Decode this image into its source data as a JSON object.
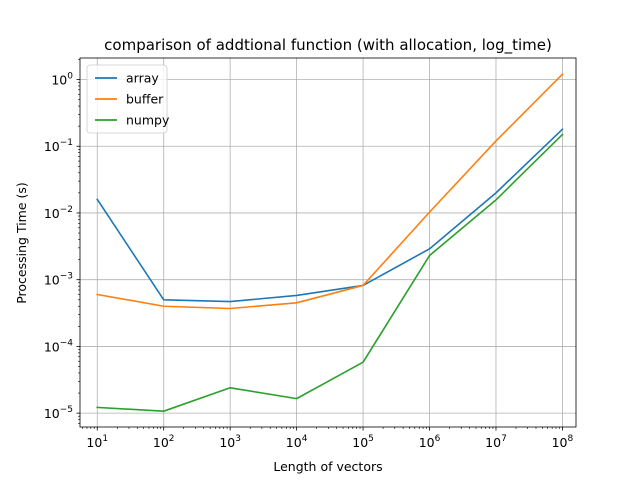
{
  "chart_data": {
    "type": "line",
    "title": "comparison of addtional function (with allocation, log_time)",
    "xlabel": "Length of vectors",
    "ylabel": "Processing Time (s)",
    "xscale": "log",
    "yscale": "log",
    "grid": true,
    "legend_position": "upper-left",
    "x": [
      10,
      100,
      1000,
      10000,
      100000,
      1000000,
      10000000,
      100000000
    ],
    "x_tick_labels": [
      {
        "base": "10",
        "exp": "1"
      },
      {
        "base": "10",
        "exp": "2"
      },
      {
        "base": "10",
        "exp": "3"
      },
      {
        "base": "10",
        "exp": "4"
      },
      {
        "base": "10",
        "exp": "5"
      },
      {
        "base": "10",
        "exp": "6"
      },
      {
        "base": "10",
        "exp": "7"
      },
      {
        "base": "10",
        "exp": "8"
      }
    ],
    "y_tick_labels": [
      {
        "value": 1e-05,
        "base": "10",
        "exp": "−5"
      },
      {
        "value": 0.0001,
        "base": "10",
        "exp": "−4"
      },
      {
        "value": 0.001,
        "base": "10",
        "exp": "−3"
      },
      {
        "value": 0.01,
        "base": "10",
        "exp": "−2"
      },
      {
        "value": 0.1,
        "base": "10",
        "exp": "−1"
      },
      {
        "value": 1,
        "base": "10",
        "exp": "0"
      }
    ],
    "xlim": [
      5.5,
      160000000
    ],
    "ylim": [
      6.2e-06,
      2.1
    ],
    "series": [
      {
        "name": "array",
        "color": "#1f77b4",
        "values": [
          0.016,
          0.0005,
          0.00047,
          0.00058,
          0.00082,
          0.0029,
          0.02,
          0.18
        ]
      },
      {
        "name": "buffer",
        "color": "#ff7f0e",
        "values": [
          0.0006,
          0.0004,
          0.00037,
          0.00045,
          0.00082,
          0.0103,
          0.12,
          1.2
        ]
      },
      {
        "name": "numpy",
        "color": "#2ca02c",
        "values": [
          1.22e-05,
          1.07e-05,
          2.4e-05,
          1.65e-05,
          5.8e-05,
          0.0023,
          0.0157,
          0.15
        ]
      }
    ]
  }
}
